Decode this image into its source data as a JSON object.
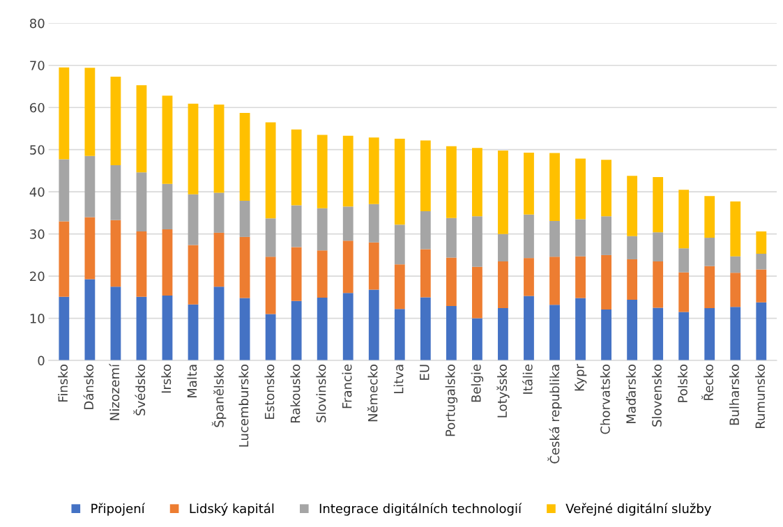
{
  "chart_data": {
    "type": "bar",
    "stacked": true,
    "categories": [
      "Finsko",
      "Dánsko",
      "Nizozemí",
      "Švédsko",
      "Irsko",
      "Malta",
      "Španělsko",
      "Lucembursko",
      "Estonsko",
      "Rakousko",
      "Slovinsko",
      "Francie",
      "Německo",
      "Litva",
      "EU",
      "Portugalsko",
      "Belgie",
      "Lotyšsko",
      "Itálie",
      "Česká republika",
      "Kypr",
      "Chorvatsko",
      "Maďarsko",
      "Slovensko",
      "Polsko",
      "Řecko",
      "Bulharsko",
      "Rumunsko"
    ],
    "series": [
      {
        "name": "Připojení",
        "color": "#4472c4",
        "values": [
          15.1,
          19.3,
          17.5,
          15.1,
          15.4,
          13.3,
          17.5,
          14.8,
          11.0,
          14.1,
          14.9,
          16.0,
          16.8,
          12.2,
          15.0,
          12.9,
          10.0,
          12.4,
          15.3,
          13.2,
          14.8,
          12.1,
          14.4,
          12.5,
          11.5,
          12.4,
          12.7,
          13.8
        ]
      },
      {
        "name": "Lidský kapitál",
        "color": "#ed7d31",
        "values": [
          17.9,
          14.7,
          15.8,
          15.5,
          15.7,
          14.1,
          12.8,
          14.5,
          13.6,
          12.8,
          11.2,
          12.4,
          11.2,
          10.6,
          11.4,
          11.5,
          12.2,
          11.1,
          9.0,
          11.4,
          9.9,
          12.9,
          9.6,
          11.0,
          9.4,
          10.0,
          8.1,
          7.8
        ]
      },
      {
        "name": "Integrace digitálních technologií",
        "color": "#a5a5a5",
        "values": [
          14.7,
          14.5,
          13.0,
          14.0,
          10.8,
          12.0,
          9.5,
          8.6,
          9.1,
          9.9,
          10.0,
          8.1,
          9.1,
          9.4,
          9.0,
          9.4,
          12.0,
          6.5,
          10.3,
          8.5,
          8.8,
          9.2,
          5.5,
          6.9,
          5.7,
          6.7,
          3.9,
          3.7
        ]
      },
      {
        "name": "Veřejné digitální služby",
        "color": "#ffc000",
        "values": [
          21.8,
          20.9,
          21.0,
          20.7,
          20.9,
          21.5,
          20.9,
          20.8,
          22.8,
          18.0,
          17.4,
          16.8,
          15.8,
          20.4,
          16.8,
          17.0,
          16.2,
          19.8,
          14.7,
          16.1,
          14.4,
          13.4,
          14.3,
          13.1,
          13.9,
          9.9,
          13.0,
          5.3
        ]
      }
    ],
    "ylim": [
      0,
      80
    ],
    "yticks": [
      0,
      10,
      20,
      30,
      40,
      50,
      60,
      70,
      80
    ],
    "grid": "y",
    "legend": "bottom"
  }
}
